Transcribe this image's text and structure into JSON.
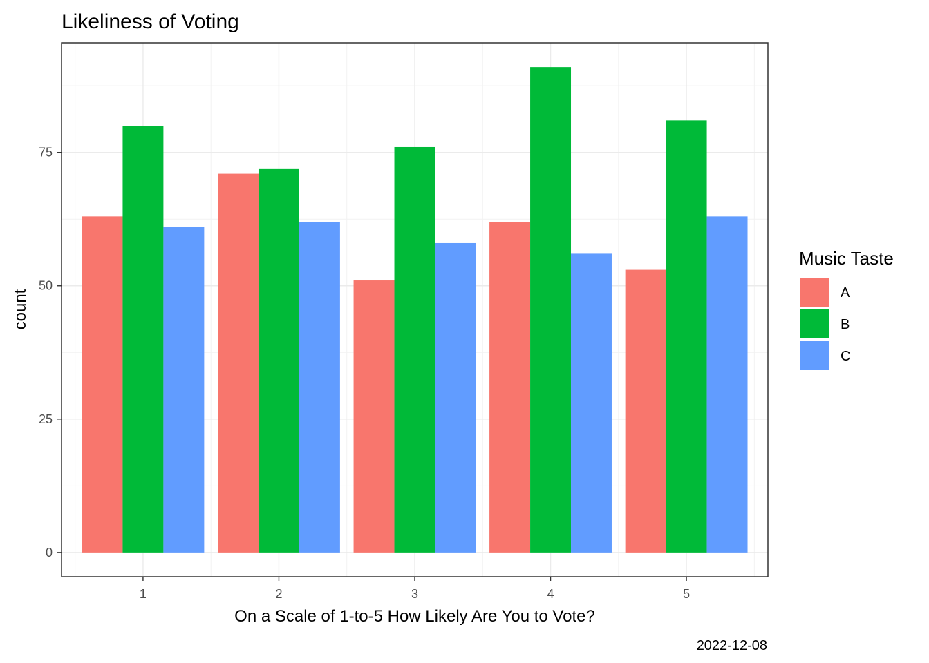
{
  "chart_data": {
    "type": "bar",
    "title": "Likeliness of Voting",
    "xlabel": "On a Scale of 1-to-5 How Likely Are You to Vote?",
    "ylabel": "count",
    "caption": "2022-12-08",
    "categories": [
      "1",
      "2",
      "3",
      "4",
      "5"
    ],
    "series": [
      {
        "name": "A",
        "color": "#F8766D",
        "values": [
          63,
          71,
          51,
          62,
          53
        ]
      },
      {
        "name": "B",
        "color": "#00BA38",
        "values": [
          80,
          72,
          76,
          91,
          81
        ]
      },
      {
        "name": "C",
        "color": "#619CFF",
        "values": [
          61,
          62,
          58,
          56,
          63
        ]
      }
    ],
    "yticks": [
      0,
      25,
      50,
      75
    ],
    "ylim": [
      -4.55,
      95.55
    ],
    "grid": true,
    "legend": {
      "title": "Music Taste",
      "position": "right"
    }
  }
}
